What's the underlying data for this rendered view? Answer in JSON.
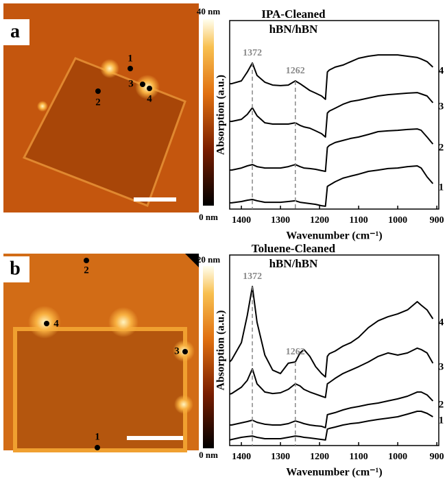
{
  "panels": [
    {
      "label": "a",
      "scale_max": "40 nm",
      "scale_min": "0 nm",
      "points": [
        "1",
        "2",
        "3",
        "4"
      ]
    },
    {
      "label": "b",
      "scale_max": "20 nm",
      "scale_min": "0 nm",
      "points": [
        "1",
        "2",
        "3",
        "4"
      ]
    }
  ],
  "chart_data": [
    {
      "type": "line",
      "title": "IPA-Cleaned",
      "subtitle": "hBN/hBN",
      "x_label": "Wavenumber (cm⁻¹)",
      "y_label": "Absorption (a.u.)",
      "x": [
        1430,
        1425,
        1400,
        1385,
        1372,
        1360,
        1340,
        1320,
        1300,
        1280,
        1262,
        1250,
        1240,
        1225,
        1210,
        1195,
        1185,
        1180,
        1175,
        1160,
        1140,
        1120,
        1100,
        1075,
        1050,
        1025,
        1000,
        975,
        950,
        940,
        925,
        910
      ],
      "xlim": [
        1430,
        895
      ],
      "xticks": [
        1400,
        1300,
        1200,
        1100,
        1000,
        900
      ],
      "ylim": [
        0,
        100
      ],
      "series": [
        {
          "name": "1",
          "color": "#000000",
          "values": [
            3.3,
            3.3,
            4.0,
            4.7,
            5.1,
            4.4,
            3.6,
            3.6,
            3.6,
            4.0,
            4.4,
            3.6,
            3.3,
            2.9,
            2.5,
            1.8,
            1.5,
            12.0,
            12.7,
            14.5,
            16.4,
            17.5,
            18.5,
            20.0,
            20.7,
            21.5,
            21.8,
            22.5,
            22.9,
            21.8,
            17.1,
            13.5
          ]
        },
        {
          "name": "2",
          "color": "#000000",
          "values": [
            20.7,
            20.7,
            21.8,
            22.9,
            23.6,
            22.5,
            21.8,
            21.8,
            21.8,
            22.5,
            23.6,
            22.5,
            21.8,
            21.5,
            21.1,
            20.4,
            20.0,
            32.7,
            33.8,
            35.3,
            36.4,
            37.5,
            38.2,
            39.6,
            41.1,
            41.5,
            41.8,
            42.2,
            42.5,
            41.8,
            38.2,
            34.5
          ]
        },
        {
          "name": "3",
          "color": "#000000",
          "values": [
            46.5,
            46.5,
            47.6,
            50.2,
            53.8,
            49.5,
            45.8,
            45.1,
            45.1,
            45.1,
            45.8,
            44.4,
            43.6,
            42.9,
            41.5,
            40.0,
            38.2,
            50.9,
            52.0,
            53.5,
            55.6,
            57.1,
            57.8,
            58.9,
            60.0,
            60.7,
            61.1,
            61.5,
            61.8,
            61.1,
            60.0,
            56.4
          ]
        },
        {
          "name": "4",
          "color": "#000000",
          "values": [
            66.5,
            66.5,
            68.0,
            72.7,
            77.5,
            70.9,
            67.3,
            65.8,
            65.5,
            65.8,
            68.0,
            66.5,
            65.1,
            62.9,
            61.5,
            60.0,
            58.2,
            72.7,
            73.8,
            75.3,
            76.4,
            78.2,
            80.0,
            81.1,
            81.8,
            81.8,
            81.8,
            81.1,
            80.4,
            79.6,
            78.2,
            75.3
          ]
        }
      ],
      "annotations": [
        {
          "x": 1372,
          "text": "1372"
        },
        {
          "x": 1262,
          "text": "1262"
        }
      ]
    },
    {
      "type": "line",
      "title": "Toluene-Cleaned",
      "subtitle": "hBN/hBN",
      "x_label": "Wavenumber (cm⁻¹)",
      "y_label": "Absorption (a.u.)",
      "x": [
        1430,
        1425,
        1400,
        1385,
        1372,
        1360,
        1340,
        1320,
        1300,
        1280,
        1262,
        1250,
        1240,
        1225,
        1210,
        1195,
        1185,
        1180,
        1175,
        1160,
        1140,
        1120,
        1100,
        1075,
        1050,
        1025,
        1000,
        975,
        950,
        940,
        925,
        910
      ],
      "xlim": [
        1430,
        895
      ],
      "xticks": [
        1400,
        1300,
        1200,
        1100,
        1000,
        900
      ],
      "ylim": [
        0,
        100
      ],
      "series": [
        {
          "name": "1",
          "color": "#000000",
          "values": [
            2.9,
            3.2,
            4.3,
            4.7,
            5.0,
            4.3,
            3.6,
            3.6,
            3.6,
            4.3,
            5.0,
            4.7,
            4.3,
            4.0,
            3.6,
            3.2,
            2.9,
            8.6,
            9.0,
            9.7,
            10.8,
            11.5,
            11.9,
            12.9,
            13.7,
            14.4,
            15.1,
            16.5,
            18.0,
            18.0,
            16.9,
            15.1
          ]
        },
        {
          "name": "2",
          "color": "#000000",
          "values": [
            10.8,
            10.8,
            11.9,
            12.6,
            13.3,
            12.2,
            11.2,
            10.8,
            10.8,
            11.5,
            12.9,
            12.2,
            11.5,
            10.8,
            10.4,
            10.1,
            9.4,
            16.2,
            16.5,
            17.3,
            18.7,
            19.8,
            20.5,
            21.6,
            22.3,
            23.4,
            24.5,
            25.9,
            28.1,
            28.1,
            26.6,
            23.4
          ]
        },
        {
          "name": "3",
          "color": "#000000",
          "values": [
            27.0,
            27.3,
            30.6,
            34.2,
            40.3,
            32.4,
            28.1,
            27.3,
            27.7,
            29.5,
            32.4,
            31.3,
            29.5,
            28.1,
            27.0,
            25.9,
            25.2,
            32.4,
            33.1,
            35.3,
            37.8,
            39.6,
            41.4,
            43.9,
            46.8,
            48.6,
            47.5,
            48.6,
            51.1,
            50.4,
            48.6,
            43.2
          ]
        },
        {
          "name": "4",
          "color": "#000000",
          "values": [
            43.9,
            45.0,
            54.0,
            68.3,
            83.5,
            64.7,
            47.5,
            39.6,
            37.8,
            43.2,
            43.9,
            48.6,
            50.4,
            46.8,
            41.4,
            37.8,
            36.0,
            46.8,
            48.2,
            49.6,
            52.2,
            54.0,
            56.8,
            61.9,
            65.5,
            67.6,
            69.1,
            71.2,
            75.5,
            73.7,
            71.2,
            66.5
          ]
        }
      ],
      "annotations": [
        {
          "x": 1372,
          "text": "1372"
        },
        {
          "x": 1262,
          "text": "1262"
        }
      ]
    }
  ]
}
